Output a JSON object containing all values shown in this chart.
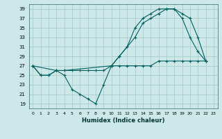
{
  "xlabel": "Humidex (Indice chaleur)",
  "bg_color": "#cce8e8",
  "grid_color": "#aacccc",
  "line_color": "#006060",
  "xlim": [
    -0.5,
    23.5
  ],
  "ylim": [
    18,
    40
  ],
  "yticks": [
    19,
    21,
    23,
    25,
    27,
    29,
    31,
    33,
    35,
    37,
    39
  ],
  "xticks": [
    0,
    1,
    2,
    3,
    4,
    5,
    6,
    7,
    8,
    9,
    10,
    11,
    12,
    13,
    14,
    15,
    16,
    17,
    18,
    19,
    20,
    21,
    22,
    23
  ],
  "line1_x": [
    0,
    1,
    2,
    3,
    4,
    5,
    6,
    7,
    8,
    9,
    10,
    11,
    12,
    13,
    14,
    15,
    16,
    17,
    18,
    19,
    20,
    21,
    22
  ],
  "line1_y": [
    27,
    25,
    25,
    26,
    25,
    22,
    21,
    20,
    19,
    23,
    27,
    29,
    31,
    35,
    37,
    38,
    39,
    39,
    39,
    37,
    33,
    30,
    28
  ],
  "line2_x": [
    0,
    3,
    4,
    10,
    11,
    12,
    13,
    14,
    15,
    16,
    17,
    18,
    19,
    20,
    21,
    22
  ],
  "line2_y": [
    27,
    26,
    26,
    27,
    29,
    31,
    33,
    36,
    37,
    38,
    39,
    39,
    38,
    37,
    33,
    28
  ],
  "line3_x": [
    0,
    1,
    2,
    3,
    4,
    5,
    6,
    7,
    8,
    9,
    10,
    11,
    12,
    13,
    14,
    15,
    16,
    17,
    18,
    19,
    20,
    21,
    22
  ],
  "line3_y": [
    27,
    25,
    25,
    26,
    26,
    26,
    26,
    26,
    26,
    26,
    27,
    27,
    27,
    27,
    27,
    27,
    28,
    28,
    28,
    28,
    28,
    28,
    28
  ]
}
